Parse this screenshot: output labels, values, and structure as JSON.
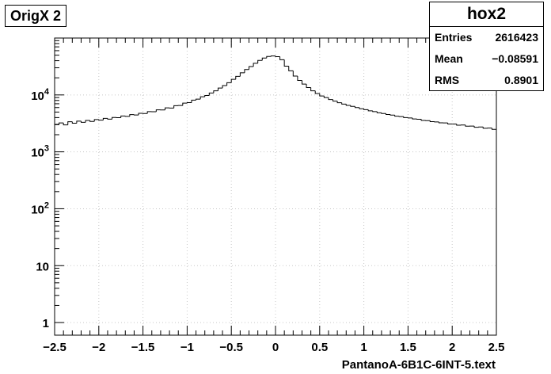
{
  "title_box": "OrigX 2",
  "stats": {
    "name": "hox2",
    "rows": [
      {
        "label": "Entries",
        "value": "2616423"
      },
      {
        "label": "Mean",
        "value": "−0.08591"
      },
      {
        "label": "RMS",
        "value": "0.8901"
      }
    ]
  },
  "chart_data": {
    "type": "histogram",
    "title": "",
    "xlabel": "PantanoA-6B1C-6INT-5.text",
    "ylabel": "",
    "xlim": [
      -2.5,
      2.5
    ],
    "ylim": [
      0.6,
      100000
    ],
    "yscale": "log",
    "grid": true,
    "bin_width": 0.05,
    "x_ticks": [
      -2.5,
      -2,
      -1.5,
      -1,
      -0.5,
      0,
      0.5,
      1,
      1.5,
      2,
      2.5
    ],
    "x_tick_labels": [
      "−2.5",
      "−2",
      "−1.5",
      "−1",
      "−0.5",
      "0",
      "0.5",
      "1",
      "1.5",
      "2",
      "2.5"
    ],
    "y_ticks": [
      1,
      10,
      100,
      1000,
      10000
    ],
    "y_tick_labels": [
      "1",
      "10",
      "10^2",
      "10^3",
      "10^4"
    ],
    "bin_low_edges": [
      -2.5,
      -2.45,
      -2.4,
      -2.35,
      -2.3,
      -2.25,
      -2.2,
      -2.15,
      -2.1,
      -2.05,
      -2.0,
      -1.95,
      -1.9,
      -1.85,
      -1.8,
      -1.75,
      -1.7,
      -1.65,
      -1.6,
      -1.55,
      -1.5,
      -1.45,
      -1.4,
      -1.35,
      -1.3,
      -1.25,
      -1.2,
      -1.15,
      -1.1,
      -1.05,
      -1.0,
      -0.95,
      -0.9,
      -0.85,
      -0.8,
      -0.75,
      -0.7,
      -0.65,
      -0.6,
      -0.55,
      -0.5,
      -0.45,
      -0.4,
      -0.35,
      -0.3,
      -0.25,
      -0.2,
      -0.15,
      -0.1,
      -0.05,
      0.0,
      0.05,
      0.1,
      0.15,
      0.2,
      0.25,
      0.3,
      0.35,
      0.4,
      0.45,
      0.5,
      0.55,
      0.6,
      0.65,
      0.7,
      0.75,
      0.8,
      0.85,
      0.9,
      0.95,
      1.0,
      1.05,
      1.1,
      1.15,
      1.2,
      1.25,
      1.3,
      1.35,
      1.4,
      1.45,
      1.5,
      1.55,
      1.6,
      1.65,
      1.7,
      1.75,
      1.8,
      1.85,
      1.9,
      1.95,
      2.0,
      2.05,
      2.1,
      2.15,
      2.2,
      2.25,
      2.3,
      2.35,
      2.4,
      2.45
    ],
    "values": [
      3040,
      3220,
      2980,
      3380,
      3180,
      3460,
      3300,
      3560,
      3420,
      3700,
      3600,
      3880,
      3760,
      4020,
      3980,
      4260,
      4200,
      4520,
      4440,
      4760,
      4720,
      5100,
      5060,
      5480,
      5440,
      5920,
      5880,
      6480,
      6520,
      7180,
      7320,
      8100,
      8420,
      9300,
      9800,
      10800,
      11800,
      13200,
      14600,
      16400,
      18800,
      21200,
      24500,
      28000,
      31500,
      36000,
      40500,
      44500,
      47500,
      48500,
      47000,
      41500,
      32000,
      26500,
      21500,
      18000,
      15500,
      13500,
      11800,
      10600,
      9600,
      9000,
      8300,
      7800,
      7300,
      6900,
      6560,
      6300,
      6000,
      5720,
      5520,
      5260,
      5080,
      4860,
      4720,
      4540,
      4420,
      4240,
      4160,
      4000,
      3940,
      3780,
      3740,
      3560,
      3540,
      3400,
      3360,
      3240,
      3220,
      3080,
      3080,
      2940,
      2960,
      2820,
      2840,
      2700,
      2740,
      2600,
      2620,
      2480
    ]
  }
}
